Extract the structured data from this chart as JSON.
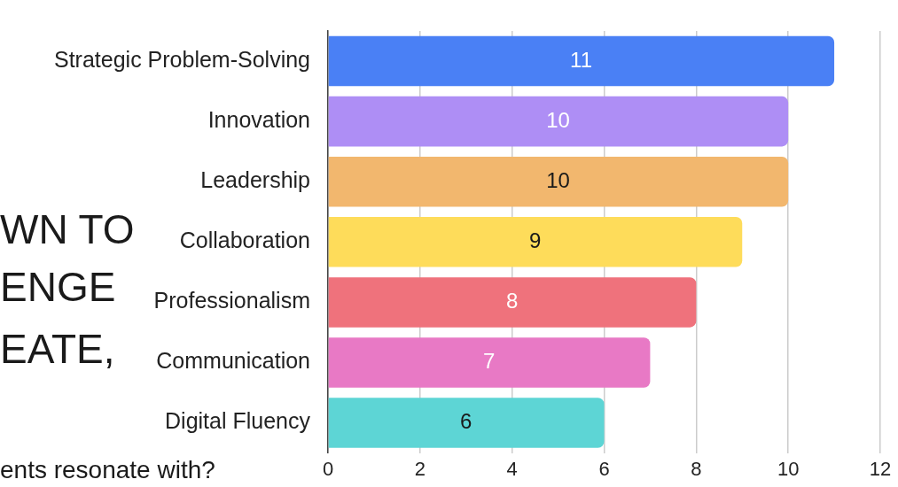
{
  "chart_data": {
    "type": "bar",
    "orientation": "horizontal",
    "categories": [
      "Strategic Problem-Solving",
      "Innovation",
      "Leadership",
      "Collaboration",
      "Professionalism",
      "Communication",
      "Digital Fluency"
    ],
    "values": [
      11,
      10,
      10,
      9,
      8,
      7,
      6
    ],
    "colors": [
      "#4a80f5",
      "#ae8ef5",
      "#f2b76e",
      "#fedc5a",
      "#ef727c",
      "#e879c5",
      "#5dd5d5"
    ],
    "xlim": [
      0,
      12
    ],
    "xticks": [
      0,
      2,
      4,
      6,
      8,
      10,
      12
    ],
    "grid": "x",
    "legend": false,
    "data_labels": true,
    "annotations": [
      "WN TO",
      "ENGE",
      "EATE,",
      "ents resonate with?"
    ]
  }
}
